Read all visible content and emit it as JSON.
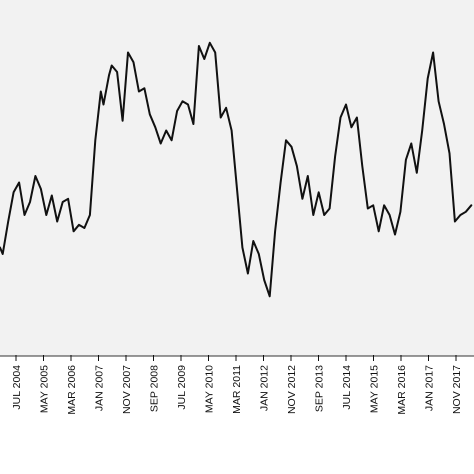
{
  "chart_data": {
    "type": "line",
    "title": "",
    "xlabel": "",
    "ylabel": "",
    "grid": false,
    "legend": "none",
    "line_color": "#111111",
    "plot_background": "#f2f2f2",
    "tick_labels": [
      "JUL 2004",
      "MAY 2005",
      "MAR 2006",
      "JAN 2007",
      "NOV 2007",
      "SEP 2008",
      "JUL 2009",
      "MAY 2010",
      "MAR 2011",
      "JAN 2012",
      "NOV 2012",
      "SEP 2013",
      "JUL 2014",
      "MAY 2015",
      "MAR 2016",
      "JAN 2017",
      "NOV 2017"
    ],
    "x_range": [
      "2003-12",
      "2018-06"
    ],
    "ylim": [
      0,
      100
    ],
    "series": [
      {
        "x": [
          "2003-12",
          "2004-01",
          "2004-03",
          "2004-05",
          "2004-07",
          "2004-09",
          "2004-11",
          "2005-01",
          "2005-03",
          "2005-05",
          "2005-07",
          "2005-09",
          "2005-11",
          "2006-01",
          "2006-03",
          "2006-05",
          "2006-07",
          "2006-09",
          "2006-11",
          "2007-01",
          "2007-02",
          "2007-04",
          "2007-05",
          "2007-07",
          "2007-09",
          "2007-11",
          "2008-01",
          "2008-03",
          "2008-05",
          "2008-07",
          "2008-09",
          "2008-11",
          "2009-01",
          "2009-03",
          "2009-05",
          "2009-07",
          "2009-09",
          "2009-11",
          "2010-01",
          "2010-03",
          "2010-05",
          "2010-07",
          "2010-09",
          "2010-11",
          "2011-01",
          "2011-03",
          "2011-05",
          "2011-07",
          "2011-09",
          "2011-11",
          "2012-01",
          "2012-03",
          "2012-05",
          "2012-07",
          "2012-09",
          "2012-11",
          "2013-01",
          "2013-03",
          "2013-05",
          "2013-07",
          "2013-09",
          "2013-11",
          "2014-01",
          "2014-03",
          "2014-05",
          "2014-07",
          "2014-09",
          "2014-11",
          "2015-01",
          "2015-03",
          "2015-05",
          "2015-07",
          "2015-09",
          "2015-11",
          "2016-01",
          "2016-03",
          "2016-05",
          "2016-07",
          "2016-09",
          "2016-11",
          "2017-01",
          "2017-03",
          "2017-05",
          "2017-07",
          "2017-09",
          "2017-11",
          "2018-01",
          "2018-03",
          "2018-05"
        ],
        "values": [
          30,
          28,
          38,
          47,
          50,
          40,
          44,
          52,
          48,
          40,
          46,
          38,
          44,
          45,
          35,
          37,
          36,
          40,
          63,
          78,
          74,
          83,
          86,
          84,
          69,
          90,
          87,
          78,
          79,
          71,
          67,
          62,
          66,
          63,
          72,
          75,
          74,
          68,
          92,
          88,
          93,
          90,
          70,
          73,
          66,
          48,
          30,
          22,
          32,
          28,
          20,
          15,
          35,
          50,
          63,
          61,
          55,
          45,
          52,
          40,
          47,
          40,
          42,
          58,
          70,
          74,
          67,
          70,
          55,
          42,
          43,
          35,
          43,
          40,
          34,
          41,
          57,
          62,
          53,
          66,
          82,
          90,
          75,
          68,
          59,
          38,
          40,
          41,
          43
        ]
      }
    ]
  }
}
